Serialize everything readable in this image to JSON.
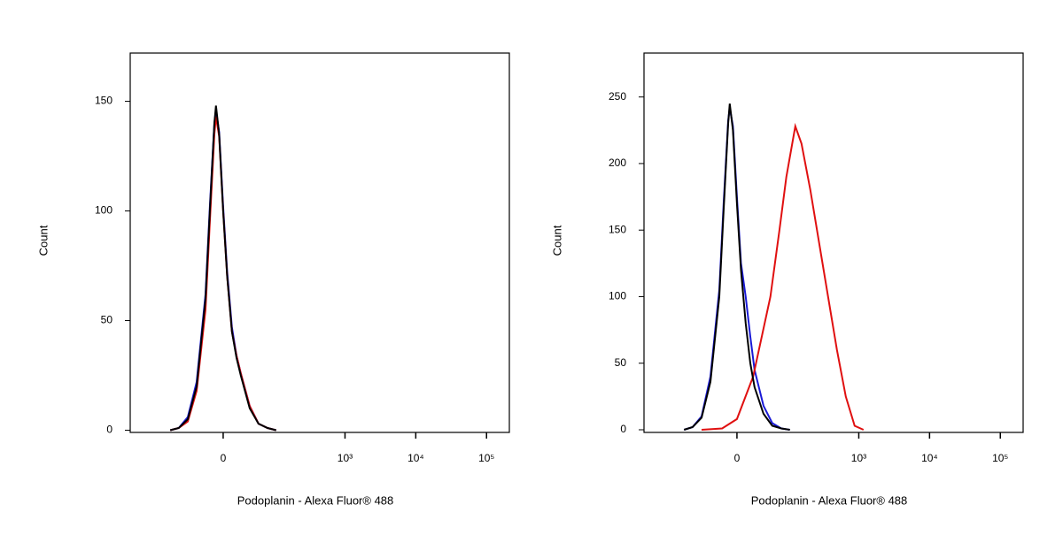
{
  "chart_data": [
    {
      "type": "line",
      "xlabel": "Podoplanin - Alexa Fluor® 488",
      "ylabel": "Count",
      "xscale": "biexponential",
      "xlim": [
        -390,
        210000
      ],
      "ylim": [
        -1,
        172
      ],
      "yticks": [
        0,
        50,
        100,
        150
      ],
      "xticks": [
        0,
        {
          "value": 1000,
          "label": "10³"
        },
        {
          "value": 10000,
          "label": "10⁴"
        },
        {
          "value": 100000,
          "label": "10⁵"
        }
      ],
      "series": [
        {
          "color": "#1a1ad6",
          "x": [
            -103,
            -76,
            -54,
            -37,
            -23,
            -17,
            -11,
            -9,
            -5,
            0,
            5,
            11,
            17,
            23,
            37,
            54,
            76,
            103
          ],
          "values": [
            0,
            1,
            6,
            22,
            62,
            102,
            140,
            146,
            136,
            102,
            72,
            47,
            34,
            26,
            11,
            3,
            1,
            0
          ]
        },
        {
          "color": "#e01010",
          "x": [
            -103,
            -76,
            -54,
            -37,
            -23,
            -17,
            -11,
            -9,
            -5,
            0,
            5,
            11,
            17,
            23,
            37,
            54,
            76,
            103
          ],
          "values": [
            0,
            1,
            4,
            18,
            55,
            95,
            135,
            143,
            134,
            100,
            70,
            45,
            34,
            26,
            11,
            3,
            1,
            0
          ]
        },
        {
          "color": "#000000",
          "x": [
            -103,
            -76,
            -54,
            -37,
            -23,
            -17,
            -11,
            -9,
            -5,
            0,
            5,
            11,
            17,
            23,
            37,
            54,
            76,
            103
          ],
          "values": [
            0,
            1,
            5,
            20,
            60,
            100,
            140,
            148,
            135,
            100,
            70,
            45,
            33,
            25,
            10,
            3,
            1,
            0
          ]
        }
      ]
    },
    {
      "type": "line",
      "xlabel": "Podoplanin - Alexa Fluor® 488",
      "ylabel": "Count",
      "xscale": "biexponential",
      "xlim": [
        -390,
        210000
      ],
      "ylim": [
        -2,
        283
      ],
      "yticks": [
        0,
        50,
        100,
        150,
        200,
        250
      ],
      "xticks": [
        0,
        {
          "value": 1000,
          "label": "10³"
        },
        {
          "value": 10000,
          "label": "10⁴"
        },
        {
          "value": 100000,
          "label": "10⁵"
        }
      ],
      "series": [
        {
          "color": "#1a1ad6",
          "x": [
            -103,
            -76,
            -54,
            -37,
            -23,
            -17,
            -11,
            -9,
            -5,
            0,
            5,
            11,
            17,
            23,
            37,
            54,
            76,
            103
          ],
          "values": [
            0,
            2,
            10,
            40,
            105,
            170,
            232,
            242,
            228,
            175,
            125,
            100,
            70,
            45,
            18,
            5,
            1,
            0
          ]
        },
        {
          "color": "#e01010",
          "x": [
            -54,
            -19,
            0,
            21,
            50,
            71,
            91,
            124,
            153,
            205,
            318,
            490,
            654,
            874,
            1167
          ],
          "values": [
            0,
            1,
            8,
            40,
            100,
            150,
            190,
            228,
            215,
            180,
            120,
            60,
            25,
            3,
            0
          ]
        },
        {
          "color": "#000000",
          "x": [
            -103,
            -76,
            -54,
            -37,
            -23,
            -17,
            -11,
            -9,
            -5,
            0,
            5,
            11,
            17,
            23,
            37,
            54,
            76,
            103
          ],
          "values": [
            0,
            2,
            9,
            36,
            100,
            165,
            230,
            245,
            225,
            170,
            120,
            80,
            50,
            32,
            12,
            3,
            1,
            0
          ]
        }
      ]
    }
  ]
}
